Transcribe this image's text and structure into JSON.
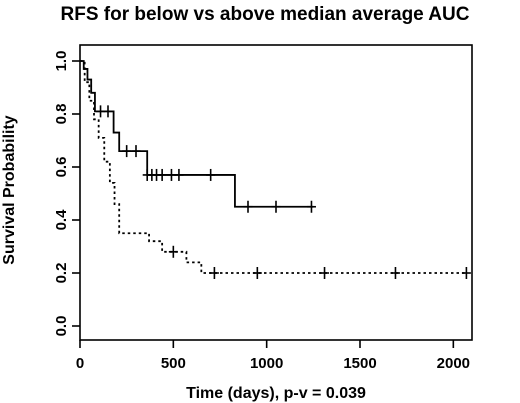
{
  "chart_data": {
    "type": "line",
    "title": "RFS for below vs above median average AUC",
    "xlabel": "Time (days), p-v = 0.039",
    "ylabel": "Survival Probability",
    "xlim": [
      0,
      2100
    ],
    "ylim": [
      0,
      1.0
    ],
    "x_ticks": [
      0,
      500,
      1000,
      1500,
      2000
    ],
    "y_ticks": [
      0.0,
      0.2,
      0.4,
      0.6,
      0.8,
      1.0
    ],
    "x_tick_labels": [
      "0",
      "500",
      "1000",
      "1500",
      "2000"
    ],
    "y_tick_labels": [
      "0.0",
      "0.2",
      "0.4",
      "0.6",
      "0.8",
      "1.0"
    ],
    "grid": false,
    "legend": "none",
    "series": [
      {
        "style": "solid",
        "steps": [
          [
            0,
            1.0
          ],
          [
            20,
            0.97
          ],
          [
            40,
            0.93
          ],
          [
            60,
            0.88
          ],
          [
            80,
            0.81
          ],
          [
            180,
            0.73
          ],
          [
            210,
            0.66
          ],
          [
            360,
            0.57
          ],
          [
            830,
            0.45
          ],
          [
            1250,
            0.45
          ]
        ],
        "censor_times": [
          110,
          150,
          250,
          300,
          360,
          385,
          410,
          440,
          490,
          530,
          700,
          900,
          1050,
          1240
        ]
      },
      {
        "style": "dotted",
        "steps": [
          [
            0,
            1.0
          ],
          [
            25,
            0.92
          ],
          [
            50,
            0.85
          ],
          [
            75,
            0.78
          ],
          [
            100,
            0.71
          ],
          [
            130,
            0.62
          ],
          [
            160,
            0.54
          ],
          [
            185,
            0.46
          ],
          [
            210,
            0.35
          ],
          [
            370,
            0.32
          ],
          [
            440,
            0.28
          ],
          [
            570,
            0.24
          ],
          [
            650,
            0.2
          ],
          [
            2070,
            0.2
          ]
        ],
        "censor_times": [
          500,
          720,
          950,
          1310,
          1690,
          2070
        ]
      }
    ]
  }
}
